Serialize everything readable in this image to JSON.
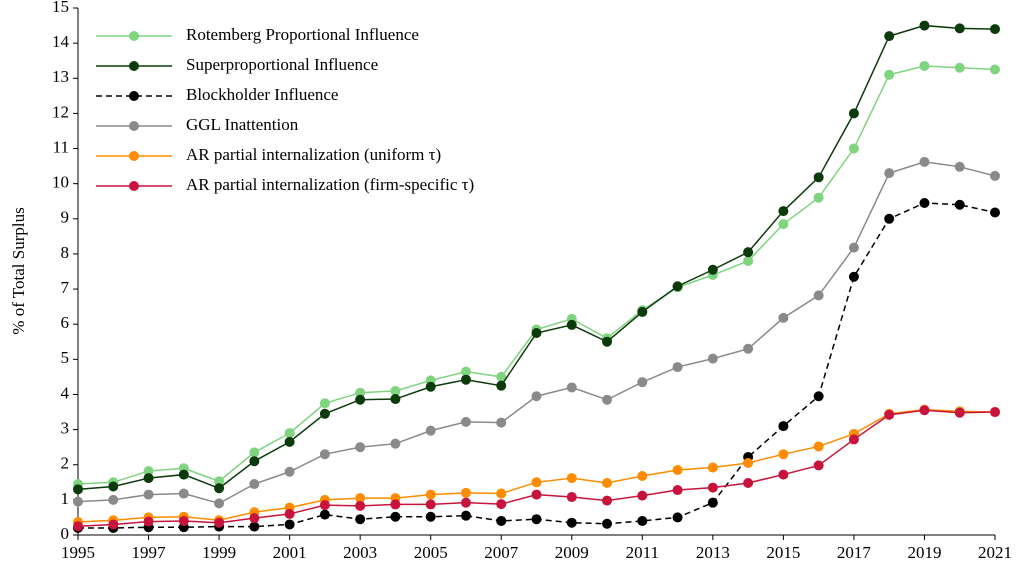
{
  "chart_data": {
    "type": "line",
    "y_label": "% of Total Surplus",
    "x": [
      1995,
      1996,
      1997,
      1998,
      1999,
      2000,
      2001,
      2002,
      2003,
      2004,
      2005,
      2006,
      2007,
      2008,
      2009,
      2010,
      2011,
      2012,
      2013,
      2014,
      2015,
      2016,
      2017,
      2018,
      2019,
      2020,
      2021
    ],
    "xlim": [
      1995,
      2021
    ],
    "xticks": [
      1995,
      1997,
      1999,
      2001,
      2003,
      2005,
      2007,
      2009,
      2011,
      2013,
      2015,
      2017,
      2019,
      2021
    ],
    "ylim": [
      0,
      15
    ],
    "yticks": [
      0,
      1,
      2,
      3,
      4,
      5,
      6,
      7,
      8,
      9,
      10,
      11,
      12,
      13,
      14,
      15
    ],
    "grid": false,
    "legend": "upper left",
    "series": [
      {
        "name": "Rotemberg Proportional Influence",
        "color": "#7fd47f",
        "linestyle": "solid",
        "values": [
          1.45,
          1.5,
          1.82,
          1.9,
          1.53,
          2.35,
          2.9,
          3.75,
          4.05,
          4.1,
          4.4,
          4.65,
          4.5,
          5.85,
          6.15,
          5.6,
          6.4,
          7.05,
          7.4,
          7.8,
          8.85,
          9.6,
          11.0,
          13.1,
          13.35,
          13.3,
          13.25
        ]
      },
      {
        "name": "Superproportional Influence",
        "color": "#0b3a0b",
        "linestyle": "solid",
        "values": [
          1.3,
          1.38,
          1.62,
          1.72,
          1.33,
          2.1,
          2.65,
          3.45,
          3.85,
          3.87,
          4.22,
          4.42,
          4.25,
          5.75,
          5.98,
          5.5,
          6.35,
          7.08,
          7.55,
          8.05,
          9.22,
          10.18,
          12.0,
          14.2,
          14.5,
          14.42,
          14.4
        ]
      },
      {
        "name": "Blockholder Influence",
        "color": "#000000",
        "linestyle": "dashed",
        "values": [
          0.2,
          0.2,
          0.22,
          0.22,
          0.24,
          0.24,
          0.3,
          0.58,
          0.45,
          0.52,
          0.52,
          0.55,
          0.4,
          0.45,
          0.35,
          0.32,
          0.4,
          0.5,
          0.92,
          2.22,
          3.1,
          3.95,
          7.35,
          9.0,
          9.45,
          9.4,
          9.18
        ]
      },
      {
        "name": "GGL Inattention",
        "color": "#8a8a8a",
        "linestyle": "solid",
        "values": [
          0.95,
          1.0,
          1.15,
          1.18,
          0.9,
          1.45,
          1.8,
          2.3,
          2.5,
          2.6,
          2.97,
          3.22,
          3.2,
          3.95,
          4.2,
          3.85,
          4.35,
          4.78,
          5.02,
          5.3,
          6.18,
          6.82,
          8.18,
          10.3,
          10.62,
          10.48,
          10.22
        ]
      },
      {
        "name": "AR partial internalization (uniform τ)",
        "color": "#ff8c00",
        "linestyle": "solid",
        "values": [
          0.37,
          0.42,
          0.5,
          0.52,
          0.42,
          0.65,
          0.78,
          1.0,
          1.05,
          1.05,
          1.15,
          1.2,
          1.18,
          1.5,
          1.62,
          1.48,
          1.68,
          1.85,
          1.92,
          2.05,
          2.3,
          2.52,
          2.88,
          3.45,
          3.57,
          3.52,
          3.5
        ]
      },
      {
        "name": "AR partial internalization (firm-specific τ)",
        "color": "#c8143c",
        "linestyle": "solid",
        "values": [
          0.25,
          0.3,
          0.38,
          0.4,
          0.35,
          0.48,
          0.6,
          0.85,
          0.83,
          0.87,
          0.87,
          0.92,
          0.88,
          1.15,
          1.08,
          0.98,
          1.12,
          1.28,
          1.35,
          1.48,
          1.72,
          1.98,
          2.72,
          3.42,
          3.55,
          3.48,
          3.5
        ]
      }
    ]
  }
}
